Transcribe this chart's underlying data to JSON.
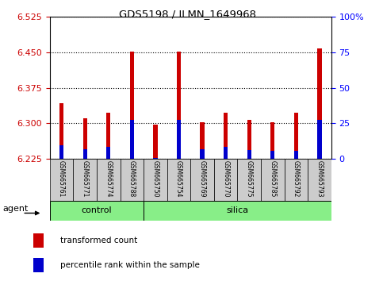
{
  "title": "GDS5198 / ILMN_1649968",
  "samples": [
    "GSM665761",
    "GSM665771",
    "GSM665774",
    "GSM665788",
    "GSM665750",
    "GSM665754",
    "GSM665769",
    "GSM665770",
    "GSM665775",
    "GSM665785",
    "GSM665792",
    "GSM665793"
  ],
  "groups": [
    "control",
    "control",
    "control",
    "control",
    "silica",
    "silica",
    "silica",
    "silica",
    "silica",
    "silica",
    "silica",
    "silica"
  ],
  "red_values": [
    6.343,
    6.31,
    6.323,
    6.452,
    6.298,
    6.452,
    6.302,
    6.323,
    6.308,
    6.302,
    6.323,
    6.458
  ],
  "blue_values": [
    6.253,
    6.245,
    6.251,
    6.308,
    6.227,
    6.307,
    6.245,
    6.25,
    6.243,
    6.241,
    6.241,
    6.307
  ],
  "ymin": 6.225,
  "ymax": 6.525,
  "yticks": [
    6.225,
    6.3,
    6.375,
    6.45,
    6.525
  ],
  "y2min": 0,
  "y2max": 100,
  "y2ticks": [
    0,
    25,
    50,
    75,
    100
  ],
  "bar_width": 0.18,
  "red_color": "#cc0000",
  "blue_color": "#0000cc",
  "control_color": "#88ee88",
  "silica_color": "#88ee88",
  "bg_color": "#cccccc",
  "legend_red": "transformed count",
  "legend_blue": "percentile rank within the sample",
  "agent_label": "agent",
  "n_control": 4,
  "n_total": 12
}
